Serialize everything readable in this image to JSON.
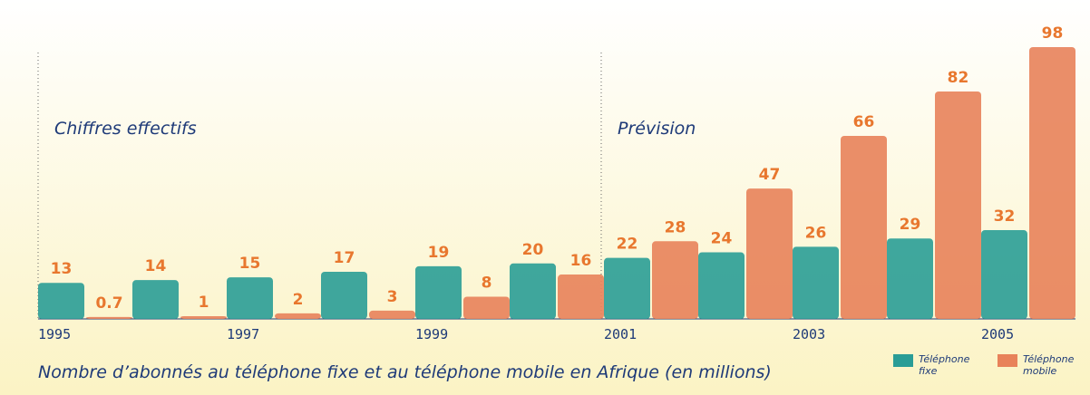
{
  "chart_data": {
    "type": "bar",
    "title": "Nombre d’abonnés au téléphone fixe et au téléphone mobile en Afrique (en millions)",
    "annotations": [
      "Chiffres effectifs",
      "Prévision"
    ],
    "categories": [
      "1995",
      null,
      "1997",
      null,
      "1999",
      null,
      "2001",
      null,
      "2003",
      null,
      "2005"
    ],
    "series": [
      {
        "name": "Téléphone fixe",
        "color": "#2a9d96",
        "values": [
          13,
          14,
          15,
          17,
          19,
          20,
          22,
          24,
          26,
          29,
          32
        ]
      },
      {
        "name": "Téléphone mobile",
        "color": "#e8825a",
        "values": [
          0.7,
          1,
          2,
          3,
          8,
          16,
          28,
          47,
          66,
          82,
          98
        ]
      }
    ],
    "label_color": "#e8772e"
  }
}
